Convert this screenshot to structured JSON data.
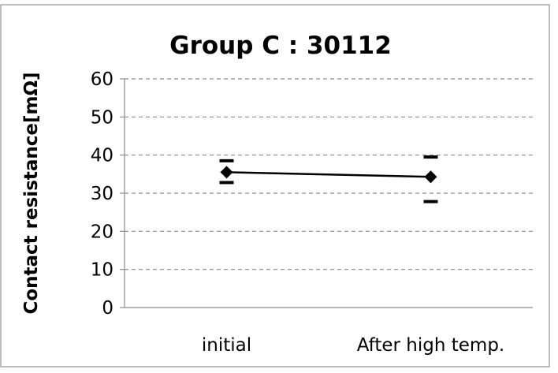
{
  "chart_data": {
    "type": "line",
    "title": "Group C : 30112",
    "xlabel": "",
    "ylabel": "Contact resistance[mΩ]",
    "categories": [
      "initial",
      "After high temp."
    ],
    "series": [
      {
        "values": [
          35.5,
          34.3
        ],
        "max": [
          38.5,
          39.5
        ],
        "min": [
          32.8,
          27.8
        ]
      }
    ],
    "ylim": [
      0,
      60
    ],
    "yticks": [
      0,
      10,
      20,
      30,
      40,
      50,
      60
    ],
    "ytick_labels": [
      "0",
      "10",
      "20",
      "30",
      "40",
      "50",
      "60"
    ],
    "grid": true,
    "legend": "none",
    "colors": {
      "line": "#000000",
      "grid": "#8c8c8c",
      "frame": "#a6a6a6",
      "axis": "#8c8c8c"
    }
  }
}
